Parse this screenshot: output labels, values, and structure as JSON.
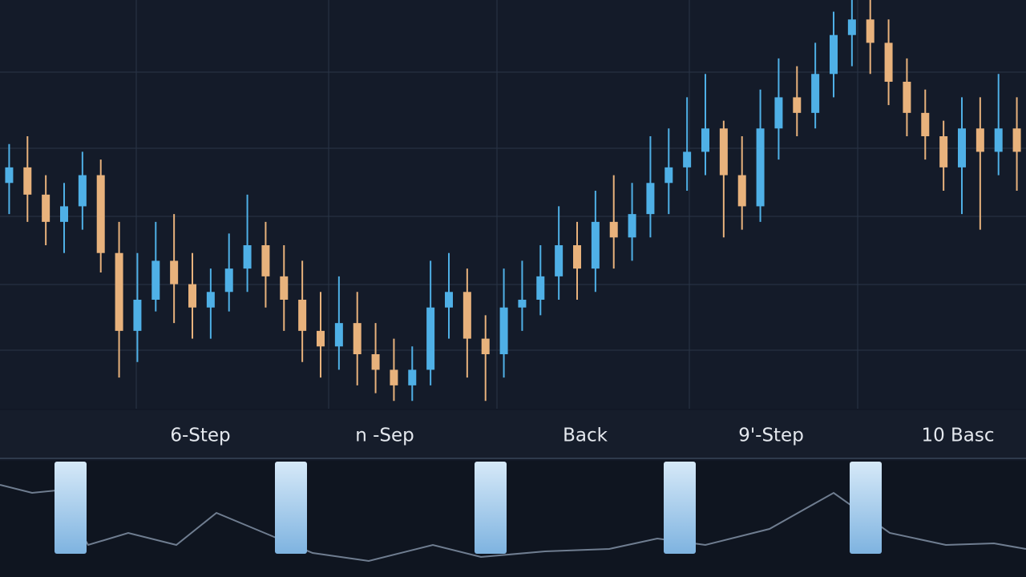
{
  "chart_data": {
    "type": "candlestick",
    "ylim": [
      0,
      105
    ],
    "up_color": "#4fb0e6",
    "down_color": "#e8b27c",
    "open": [
      58,
      62,
      55,
      48,
      52,
      60,
      40,
      20,
      28,
      38,
      32,
      26,
      30,
      36,
      42,
      34,
      28,
      20,
      16,
      22,
      14,
      10,
      6,
      10,
      26,
      30,
      18,
      14,
      26,
      28,
      34,
      42,
      36,
      48,
      44,
      50,
      58,
      62,
      66,
      72,
      60,
      52,
      72,
      80,
      76,
      86,
      96,
      100,
      94,
      84,
      76,
      70,
      62,
      72,
      66,
      72
    ],
    "close": [
      62,
      55,
      48,
      52,
      60,
      40,
      20,
      28,
      38,
      32,
      26,
      30,
      36,
      42,
      34,
      28,
      20,
      16,
      22,
      14,
      10,
      6,
      10,
      26,
      30,
      18,
      14,
      26,
      28,
      34,
      42,
      36,
      48,
      44,
      50,
      58,
      62,
      66,
      72,
      60,
      52,
      72,
      80,
      76,
      86,
      96,
      100,
      94,
      84,
      76,
      70,
      62,
      72,
      66,
      72,
      66
    ],
    "high": [
      68,
      70,
      60,
      58,
      66,
      64,
      48,
      40,
      48,
      50,
      40,
      36,
      45,
      55,
      48,
      42,
      38,
      30,
      34,
      30,
      22,
      18,
      16,
      38,
      40,
      36,
      24,
      36,
      38,
      42,
      52,
      48,
      56,
      60,
      58,
      70,
      72,
      80,
      86,
      74,
      70,
      82,
      90,
      88,
      94,
      102,
      105,
      106,
      100,
      90,
      82,
      74,
      80,
      80,
      86,
      80
    ],
    "low": [
      50,
      48,
      42,
      40,
      46,
      35,
      8,
      12,
      25,
      22,
      18,
      18,
      25,
      30,
      26,
      20,
      12,
      8,
      10,
      6,
      4,
      2,
      2,
      6,
      18,
      8,
      2,
      8,
      20,
      24,
      28,
      28,
      30,
      36,
      38,
      44,
      50,
      56,
      60,
      44,
      46,
      48,
      64,
      70,
      72,
      80,
      88,
      86,
      78,
      70,
      64,
      56,
      50,
      46,
      60,
      56
    ]
  },
  "tabs": [
    "6-Step",
    "n -Sep",
    "Back",
    "9'-Step",
    "10 Basc"
  ]
}
